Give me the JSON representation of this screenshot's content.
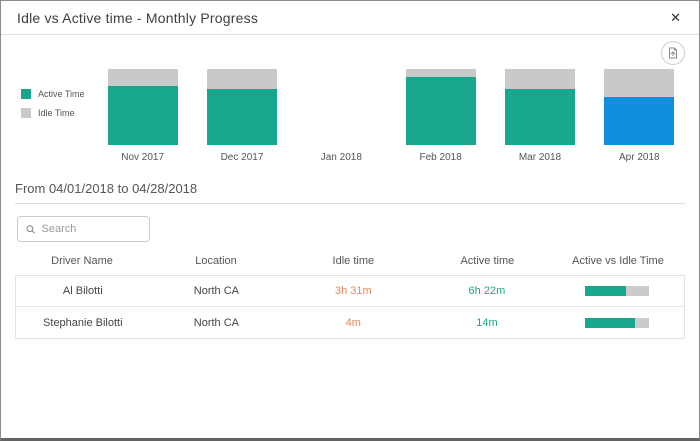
{
  "modal": {
    "title": "Idle vs Active time - Monthly Progress",
    "close_icon": "✕"
  },
  "chart_data": {
    "type": "bar",
    "stacked": true,
    "title": "Idle vs Active time - Monthly Progress",
    "categories": [
      "Nov 2017",
      "Dec 2017",
      "Jan 2018",
      "Feb 2018",
      "Mar 2018",
      "Apr 2018"
    ],
    "series": [
      {
        "name": "Active Time",
        "values_pct": [
          78,
          74,
          0,
          89,
          74,
          63
        ]
      },
      {
        "name": "Idle Time",
        "values_pct": [
          22,
          26,
          0,
          11,
          26,
          37
        ]
      }
    ],
    "months": [
      {
        "label": "Nov 2017",
        "active_pct": 78,
        "idle_pct": 22
      },
      {
        "label": "Dec 2017",
        "active_pct": 74,
        "idle_pct": 26
      },
      {
        "label": "Jan 2018",
        "active_pct": 0,
        "idle_pct": 0
      },
      {
        "label": "Feb 2018",
        "active_pct": 89,
        "idle_pct": 11
      },
      {
        "label": "Mar 2018",
        "active_pct": 74,
        "idle_pct": 26
      },
      {
        "label": "Apr 2018",
        "active_pct": 63,
        "idle_pct": 37
      }
    ],
    "selected_category": "Apr 2018",
    "legend_position": "left",
    "grid": false,
    "colors": {
      "active": "#17a78c",
      "idle": "#c9c9c9",
      "selected_active": "#1090dc"
    }
  },
  "legend": {
    "items": [
      {
        "label": "Active Time",
        "color": "#17a78c"
      },
      {
        "label": "Idle Time",
        "color": "#c9c9c9"
      }
    ]
  },
  "filter": {
    "heading": "From 04/01/2018 to 04/28/2018"
  },
  "search": {
    "placeholder": "Search",
    "value": ""
  },
  "table": {
    "columns": [
      "Driver Name",
      "Location",
      "Idle time",
      "Active time",
      "Active vs Idle Time"
    ],
    "rows": [
      {
        "driver": "Al Bilotti",
        "location": "North CA",
        "idle": "3h 31m",
        "active": "6h 22m",
        "active_pct": 64
      },
      {
        "driver": "Stephanie Bilotti",
        "location": "North CA",
        "idle": "4m",
        "active": "14m",
        "active_pct": 78
      }
    ]
  }
}
